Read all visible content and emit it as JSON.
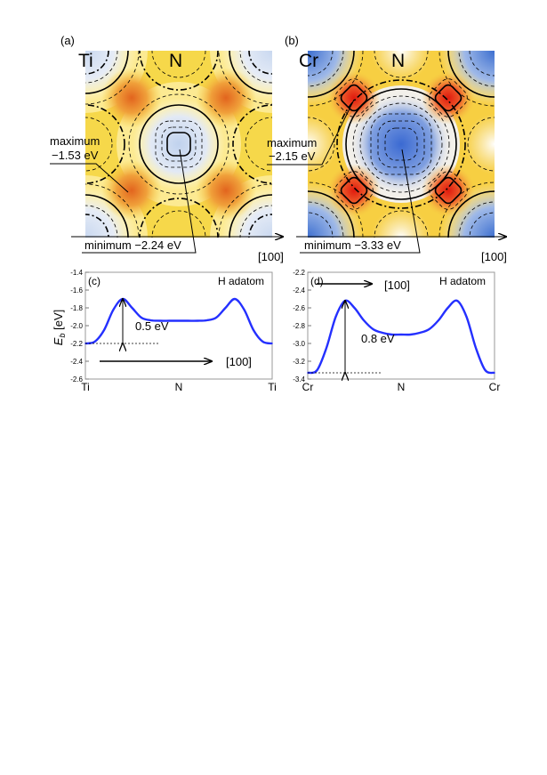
{
  "figure": {
    "panel_a": {
      "label": "(a)",
      "corner_atom": "Ti",
      "center_atom": "N",
      "maximum_label": "maximum",
      "maximum_value": "−1.53 eV",
      "minimum_label": "minimum −2.24 eV",
      "direction": "[100]"
    },
    "panel_b": {
      "label": "(b)",
      "corner_atom": "Cr",
      "center_atom": "N",
      "maximum_label": "maximum",
      "maximum_value": "−2.15 eV",
      "minimum_label": "minimum −3.33 eV",
      "direction": "[100]"
    }
  },
  "chart_data": [
    {
      "type": "line",
      "panel_label": "(c)",
      "ylabel": "E_b [eV]",
      "ylabel_main": "E",
      "ylabel_sub": "b",
      "ylabel_unit": " [eV]",
      "legend": "H adatom",
      "annotation_barrier": "0.5 eV",
      "direction": "[100]",
      "xticks": [
        "Ti",
        "N",
        "Ti"
      ],
      "yticks": [
        "-1.4",
        "-1.6",
        "-1.8",
        "-2.0",
        "-2.2",
        "-2.4",
        "-2.6"
      ],
      "ylim": [
        -2.6,
        -1.4
      ],
      "x": [
        0,
        0.05,
        0.1,
        0.15,
        0.2,
        0.25,
        0.3,
        0.35,
        0.4,
        0.45,
        0.5,
        0.55,
        0.6,
        0.65,
        0.7,
        0.75,
        0.8,
        0.85,
        0.9,
        0.95,
        1.0
      ],
      "values": [
        -2.2,
        -2.18,
        -2.05,
        -1.82,
        -1.7,
        -1.8,
        -1.91,
        -1.94,
        -1.945,
        -1.945,
        -1.945,
        -1.945,
        -1.945,
        -1.94,
        -1.91,
        -1.8,
        -1.7,
        -1.82,
        -2.05,
        -2.18,
        -2.2
      ],
      "barrier_from": -2.2,
      "barrier_to": -1.7
    },
    {
      "type": "line",
      "panel_label": "(d)",
      "legend": "H adatom",
      "annotation_barrier": "0.8 eV",
      "direction": "[100]",
      "xticks": [
        "Cr",
        "N",
        "Cr"
      ],
      "yticks": [
        "-2.2",
        "-2.4",
        "-2.6",
        "-2.8",
        "-3.0",
        "-3.2",
        "-3.4"
      ],
      "ylim": [
        -3.4,
        -2.2
      ],
      "x": [
        0,
        0.05,
        0.1,
        0.15,
        0.2,
        0.25,
        0.3,
        0.35,
        0.4,
        0.45,
        0.5,
        0.55,
        0.6,
        0.65,
        0.7,
        0.75,
        0.8,
        0.85,
        0.9,
        0.95,
        1.0
      ],
      "values": [
        -3.33,
        -3.3,
        -3.05,
        -2.7,
        -2.52,
        -2.6,
        -2.74,
        -2.84,
        -2.88,
        -2.9,
        -2.9,
        -2.9,
        -2.88,
        -2.84,
        -2.74,
        -2.6,
        -2.52,
        -2.7,
        -3.05,
        -3.3,
        -3.33
      ],
      "barrier_from": -3.33,
      "barrier_to": -2.52
    }
  ]
}
